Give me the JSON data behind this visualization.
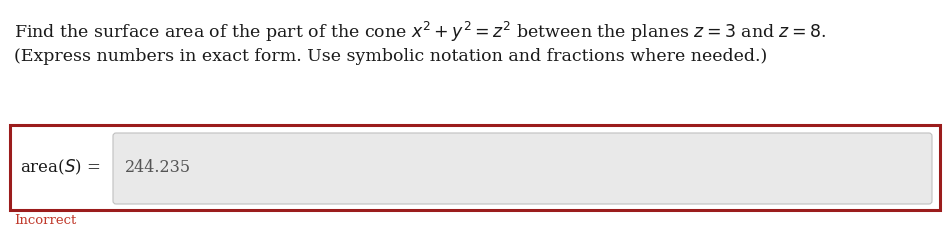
{
  "line1_plain": "Find the surface area of the part of the cone ",
  "line1_math1": "$x^2 + y^2 = z^2$",
  "line1_mid": " between the planes ",
  "line1_math2": "$z = 3$",
  "line1_and": " and ",
  "line1_math3": "$z = 8$",
  "line1_end": ".",
  "line2": "(Express numbers in exact form. Use symbolic notation and fractions where needed.)",
  "label_plain": "area(",
  "label_italic": "S",
  "label_end": ") =",
  "answer": "244.235",
  "incorrect_text": "Incorrect",
  "bg_color": "#ffffff",
  "box_border_color": "#9b1c1c",
  "input_bg_color": "#e9e9e9",
  "input_border_color": "#c0c0c0",
  "incorrect_color": "#c0392b",
  "text_color": "#1a1a1a",
  "fontsize_main": 12.5,
  "fontsize_small": 9.5,
  "fontsize_label": 12,
  "fontsize_answer": 11.5
}
